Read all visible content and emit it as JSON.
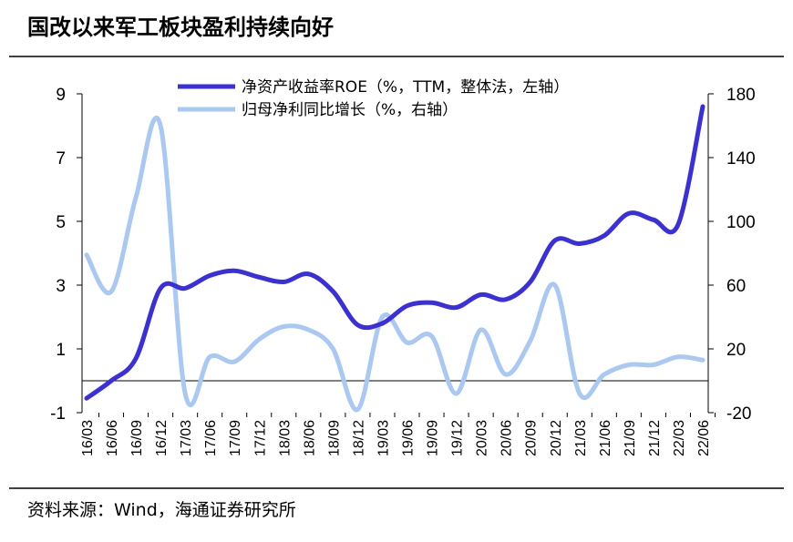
{
  "chart_data": {
    "type": "line",
    "title": "国改以来军工板块盈利持续向好",
    "source": "资料来源：Wind，海通证券研究所",
    "categories": [
      "16/03",
      "16/06",
      "16/09",
      "16/12",
      "17/03",
      "17/06",
      "17/09",
      "17/12",
      "18/03",
      "18/06",
      "18/09",
      "18/12",
      "19/03",
      "19/06",
      "19/09",
      "19/12",
      "20/03",
      "20/06",
      "20/09",
      "20/12",
      "21/03",
      "21/06",
      "21/09",
      "21/12",
      "22/03",
      "22/06"
    ],
    "series": [
      {
        "name": "净资产收益率ROE（%，TTM，整体法，左轴）",
        "color": "#3a2fdc",
        "axis": "y",
        "values": [
          -0.55,
          0.0,
          0.7,
          2.9,
          2.9,
          3.3,
          3.45,
          3.25,
          3.1,
          3.35,
          2.8,
          1.75,
          1.8,
          2.35,
          2.45,
          2.3,
          2.7,
          2.55,
          3.1,
          4.4,
          4.3,
          4.55,
          5.25,
          5.05,
          4.9,
          8.6
        ]
      },
      {
        "name": "归母净利同比增长（%，右轴）",
        "color": "#a9c8f4",
        "axis": "y2",
        "values": [
          79,
          56,
          115,
          160,
          -8,
          15,
          12,
          26,
          34,
          32,
          20,
          -18,
          40,
          24,
          28,
          -8,
          32,
          4,
          25,
          60,
          -8,
          4,
          10,
          10,
          15,
          13
        ]
      }
    ],
    "ylim": [
      -1,
      9
    ],
    "yticks": [
      -1,
      1,
      3,
      5,
      7,
      9
    ],
    "y2lim": [
      -20,
      180
    ],
    "y2ticks": [
      -20,
      20,
      60,
      100,
      140,
      180
    ]
  }
}
